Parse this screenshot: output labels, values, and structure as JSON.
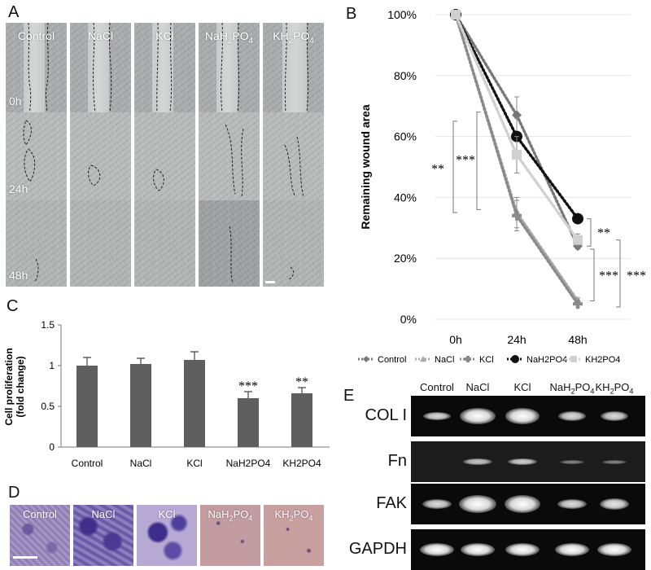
{
  "panels": {
    "A": "A",
    "B": "B",
    "C": "C",
    "D": "D",
    "E": "E"
  },
  "panel_a": {
    "columns": [
      "Control",
      "NaCl",
      "KCl",
      "NaH2PO4",
      "KH2PO4"
    ],
    "time_labels": [
      "0h",
      "24h",
      "48h"
    ]
  },
  "chart_b": {
    "type": "line",
    "categories": [
      "0h",
      "24h",
      "48h"
    ],
    "ylabel": "Remaining wound area",
    "yticks": [
      "0%",
      "20%",
      "40%",
      "60%",
      "80%",
      "100%"
    ],
    "ylim": [
      0,
      100
    ],
    "series": [
      {
        "name": "Control",
        "values": [
          100,
          67,
          24
        ],
        "errors": [
          0,
          6,
          1
        ],
        "color": "#777777",
        "marker": "diamond"
      },
      {
        "name": "NaCl",
        "values": [
          100,
          35,
          6
        ],
        "errors": [
          0,
          5,
          1
        ],
        "color": "#aaaaaa",
        "marker": "triangle"
      },
      {
        "name": "KCl",
        "values": [
          100,
          34,
          5
        ],
        "errors": [
          0,
          5,
          1
        ],
        "color": "#8a8a8a",
        "marker": "plus"
      },
      {
        "name": "NaH2PO4",
        "values": [
          100,
          60,
          33
        ],
        "errors": [
          0,
          6,
          1
        ],
        "color": "#111111",
        "marker": "circle"
      },
      {
        "name": "KH2PO4",
        "values": [
          100,
          54,
          26
        ],
        "errors": [
          0,
          6,
          2
        ],
        "color": "#d0d0d0",
        "marker": "square"
      }
    ],
    "significance": [
      "**",
      "***",
      "**",
      "***",
      "***"
    ],
    "grid": true,
    "legend_position": "bottom"
  },
  "chart_c": {
    "type": "bar",
    "categories": [
      "Control",
      "NaCl",
      "KCl",
      "NaH2PO4",
      "KH2PO4"
    ],
    "values": [
      1.0,
      1.02,
      1.07,
      0.6,
      0.66
    ],
    "errors": [
      0.1,
      0.07,
      0.1,
      0.08,
      0.07
    ],
    "significance": [
      "",
      "",
      "",
      "***",
      "**"
    ],
    "ylabel": "Cell proliferation (fold change)",
    "yticks": [
      "0",
      "0.5",
      "1",
      "1.5"
    ],
    "ylim": [
      0,
      1.5
    ],
    "bar_color": "#5f5f5f"
  },
  "panel_d": {
    "columns": [
      "Control",
      "NaCl",
      "KCl",
      "NaH2PO4",
      "KH2PO4"
    ]
  },
  "panel_e": {
    "lanes": [
      "Control",
      "NaCl",
      "KCl",
      "NaH2PO4",
      "KH2PO4"
    ],
    "rows": [
      "COL I",
      "Fn",
      "FAK",
      "GAPDH"
    ]
  }
}
